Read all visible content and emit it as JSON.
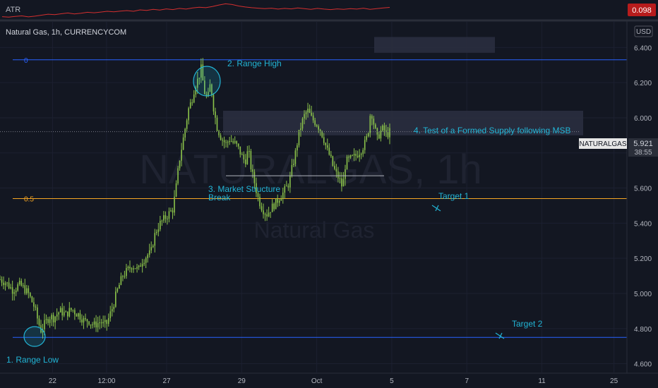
{
  "atr_pane": {
    "label": "ATR",
    "value": "0.098",
    "value_color": "#b71c1c",
    "line_color": "#d32f2f",
    "values": [
      0.06,
      0.058,
      0.061,
      0.063,
      0.059,
      0.062,
      0.066,
      0.07,
      0.068,
      0.072,
      0.075,
      0.071,
      0.074,
      0.078,
      0.076,
      0.079,
      0.082,
      0.08,
      0.083,
      0.085,
      0.082,
      0.088,
      0.086,
      0.09,
      0.087,
      0.092,
      0.089,
      0.094,
      0.091,
      0.096,
      0.099,
      0.097,
      0.102,
      0.108,
      0.113,
      0.11,
      0.104,
      0.1,
      0.097,
      0.095,
      0.093,
      0.095,
      0.091,
      0.094,
      0.092,
      0.096,
      0.093,
      0.09,
      0.094,
      0.091,
      0.089,
      0.092,
      0.09,
      0.093,
      0.091,
      0.095,
      0.09,
      0.093,
      0.096,
      0.098
    ]
  },
  "header": {
    "symbol_title": "Natural Gas, 1h, CURRENCYCOM",
    "currency": "USD"
  },
  "watermark": {
    "line1": "NATURALGAS, 1h",
    "line2": "Natural Gas"
  },
  "last_price": {
    "symbol": "NATURALGAS",
    "price": "5.921",
    "countdown": "38:55",
    "value": 5.921
  },
  "colors": {
    "background": "#131722",
    "candle": "#8bc34a",
    "fib_line": "#2962ff",
    "fib_half": "#f6a623",
    "annotation": "#22b5d6",
    "grid": "#1c2030"
  },
  "chart_data": {
    "type": "candlestick",
    "ylim": [
      4.55,
      6.55
    ],
    "yticks": [
      6.4,
      6.2,
      6.0,
      5.8,
      5.6,
      5.4,
      5.2,
      5.0,
      4.8,
      4.6
    ],
    "ytick_labels": [
      "6.400",
      "6.200",
      "6.000",
      "5.800",
      "5.600",
      "5.400",
      "5.200",
      "5.000",
      "4.800",
      "4.600"
    ],
    "xtick_labels": [
      {
        "label": "22",
        "i": 17
      },
      {
        "label": "12:00",
        "i": 35
      },
      {
        "label": "27",
        "i": 55
      },
      {
        "label": "29",
        "i": 80
      },
      {
        "label": "Oct",
        "i": 105
      },
      {
        "label": "5",
        "i": 130
      },
      {
        "label": "7",
        "i": 155
      },
      {
        "label": "11",
        "i": 180
      },
      {
        "label": "25",
        "i": 204
      }
    ],
    "n_slots": 213,
    "close_series": [
      5.08,
      5.07,
      5.06,
      5.04,
      5.02,
      5.03,
      5.05,
      5.04,
      5.02,
      5.0,
      4.96,
      4.92,
      4.85,
      4.79,
      4.82,
      4.85,
      4.87,
      4.86,
      4.88,
      4.9,
      4.89,
      4.88,
      4.9,
      4.91,
      4.89,
      4.88,
      4.86,
      4.84,
      4.85,
      4.83,
      4.82,
      4.83,
      4.84,
      4.82,
      4.83,
      4.88,
      4.93,
      5.0,
      5.05,
      5.1,
      5.12,
      5.14,
      5.16,
      5.15,
      5.13,
      5.18,
      5.2,
      5.22,
      5.23,
      5.32,
      5.37,
      5.4,
      5.42,
      5.44,
      5.46,
      5.48,
      5.6,
      5.75,
      5.85,
      5.95,
      6.05,
      6.1,
      6.18,
      6.22,
      6.28,
      6.15,
      6.1,
      6.2,
      6.05,
      5.95,
      5.9,
      5.87,
      5.85,
      5.88,
      5.86,
      5.85,
      5.82,
      5.78,
      5.75,
      5.82,
      5.7,
      5.63,
      5.55,
      5.5,
      5.47,
      5.45,
      5.48,
      5.5,
      5.52,
      5.55,
      5.57,
      5.6,
      5.63,
      5.72,
      5.8,
      5.9,
      5.97,
      6.02,
      6.04,
      6.0,
      5.98,
      5.96,
      5.93,
      5.88,
      5.82,
      5.78,
      5.72,
      5.68,
      5.65,
      5.6,
      5.75,
      5.76,
      5.77,
      5.78,
      5.8,
      5.82,
      5.85,
      5.9,
      6.05,
      5.96,
      5.88,
      5.92,
      5.94,
      5.9,
      5.92
    ]
  },
  "fibonacci": {
    "levels": [
      {
        "label": "0",
        "value": 6.33
      },
      {
        "label": "0.5",
        "value": 5.54
      },
      {
        "label": "",
        "value": 4.75
      }
    ]
  },
  "annotations": {
    "range_low": "1. Range Low",
    "range_high": "2. Range High",
    "msb": "3. Market Structure Break",
    "msb_line1": "3. Market Structure",
    "msb_line2": "Break",
    "supply_test": "4.  Test of a Formed Supply following MSB",
    "target1": "Target 1",
    "target2": "Target 2"
  },
  "zones": {
    "supply": {
      "top": 6.04,
      "bottom": 5.9
    },
    "top_box": {
      "top": 6.46,
      "bottom": 6.37
    },
    "msb_level": 5.67
  }
}
